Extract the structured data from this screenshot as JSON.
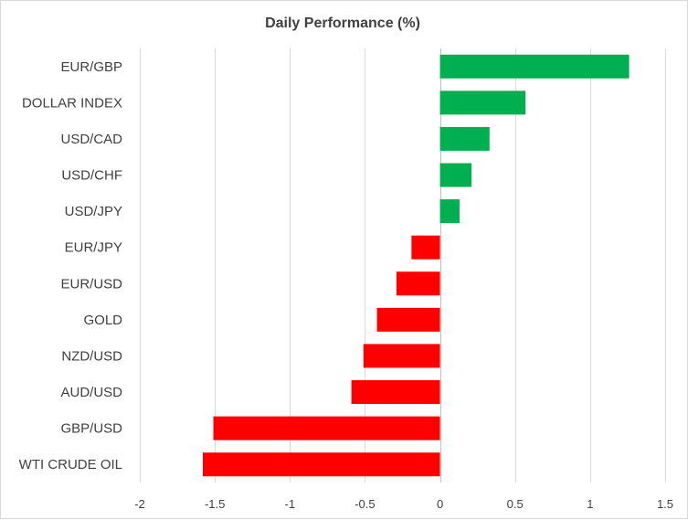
{
  "chart_data": {
    "type": "bar",
    "orientation": "horizontal",
    "title": "Daily Performance (%)",
    "xlabel": "",
    "ylabel": "",
    "xlim": [
      -2,
      1.5
    ],
    "xticks": [
      -2,
      -1.5,
      -1,
      -0.5,
      0,
      0.5,
      1,
      1.5
    ],
    "xtick_labels": [
      "-2",
      "-1.5",
      "-1",
      "-0.5",
      "0",
      "0.5",
      "1",
      "1.5"
    ],
    "grid": true,
    "categories": [
      "EUR/GBP",
      "DOLLAR INDEX",
      "USD/CAD",
      "USD/CHF",
      "USD/JPY",
      "EUR/JPY",
      "EUR/USD",
      "GOLD",
      "NZD/USD",
      "AUD/USD",
      "GBP/USD",
      "WTI CRUDE OIL"
    ],
    "values": [
      1.26,
      0.57,
      0.33,
      0.21,
      0.13,
      -0.19,
      -0.29,
      -0.42,
      -0.51,
      -0.59,
      -1.51,
      -1.58
    ],
    "colors": {
      "positive": "#00b050",
      "negative": "#ff0000"
    }
  }
}
